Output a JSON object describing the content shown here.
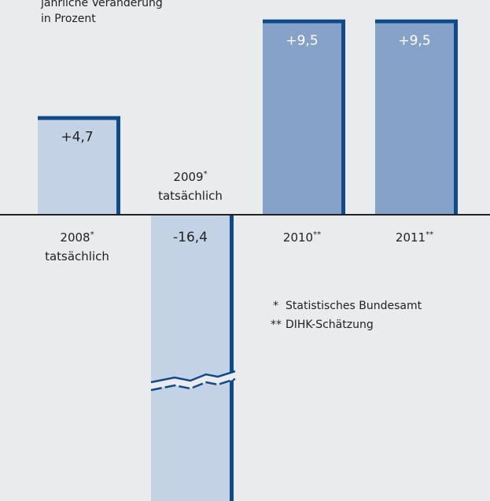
{
  "chart_data": {
    "type": "bar",
    "ylabel_lines": [
      "jährliche Veränderung",
      "in Prozent"
    ],
    "categories": [
      {
        "year": "2008",
        "mark": "*",
        "sub": "tatsächlich"
      },
      {
        "year": "2009",
        "mark": "*",
        "sub": "tatsächlich"
      },
      {
        "year": "2010",
        "mark": "**",
        "sub": ""
      },
      {
        "year": "2011",
        "mark": "**",
        "sub": ""
      }
    ],
    "values": [
      4.7,
      -16.4,
      9.5,
      9.5
    ],
    "value_labels": [
      "+4,7",
      "-16,4",
      "+9,5",
      "+9,5"
    ],
    "axis_break_on": "2009",
    "colors": {
      "actual": "#c3d2e4",
      "forecast": "#87a2c9",
      "shadow": "#0f4a8a",
      "axis": "#222222",
      "background": "#e9ebed",
      "label_on_forecast": "#ffffff",
      "label_on_actual": "#222222"
    },
    "footnotes": [
      {
        "mark": "*",
        "text": "Statistisches Bundesamt"
      },
      {
        "mark": "**",
        "text": "DIHK-Schätzung"
      }
    ]
  }
}
